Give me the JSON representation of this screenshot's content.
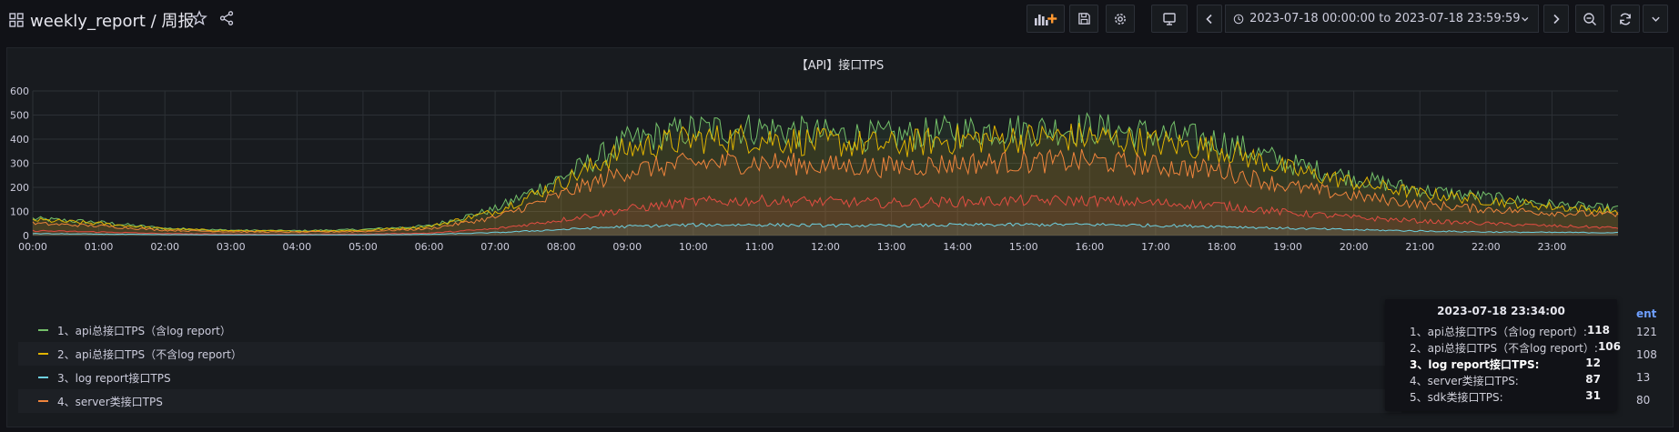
{
  "dashboard": {
    "title": "weekly_report / 周报"
  },
  "time_picker": {
    "range": "2023-07-18 00:00:00 to 2023-07-18 23:59:59"
  },
  "panel": {
    "title": "【API】接口TPS"
  },
  "chart_data": {
    "type": "area",
    "x_ticks": [
      "00:00",
      "01:00",
      "02:00",
      "03:00",
      "04:00",
      "05:00",
      "06:00",
      "07:00",
      "08:00",
      "09:00",
      "10:00",
      "11:00",
      "12:00",
      "13:00",
      "14:00",
      "15:00",
      "16:00",
      "17:00",
      "18:00",
      "19:00",
      "20:00",
      "21:00",
      "22:00",
      "23:00"
    ],
    "hours": [
      0,
      1,
      2,
      3,
      4,
      5,
      6,
      7,
      8,
      9,
      10,
      11,
      12,
      13,
      14,
      15,
      16,
      17,
      18,
      19,
      20,
      21,
      22,
      23,
      24
    ],
    "y_ticks": [
      0,
      100,
      200,
      300,
      400,
      500,
      600
    ],
    "ylim": [
      0,
      600
    ],
    "grid": true,
    "legend_placement": "bottom-left",
    "series": [
      {
        "name": "1、api总接口TPS（含log report）",
        "color": "#73bf69",
        "values": [
          70,
          55,
          30,
          22,
          20,
          25,
          40,
          110,
          240,
          390,
          440,
          445,
          420,
          410,
          435,
          440,
          445,
          420,
          390,
          300,
          240,
          190,
          160,
          130,
          110
        ]
      },
      {
        "name": "2、api总接口TPS（不含log report）",
        "color": "#e0b400",
        "values": [
          65,
          50,
          28,
          20,
          18,
          22,
          37,
          100,
          220,
          360,
          400,
          405,
          385,
          375,
          400,
          405,
          410,
          385,
          360,
          275,
          220,
          175,
          148,
          120,
          100
        ]
      },
      {
        "name": "3、log report接口TPS",
        "color": "#6ed0e0",
        "values": [
          8,
          6,
          4,
          3,
          3,
          3,
          5,
          12,
          25,
          38,
          44,
          45,
          42,
          41,
          44,
          45,
          46,
          42,
          38,
          30,
          24,
          19,
          15,
          13,
          12
        ]
      },
      {
        "name": "4、server类接口TPS",
        "color": "#ef843c",
        "values": [
          50,
          40,
          22,
          16,
          14,
          17,
          28,
          75,
          170,
          270,
          300,
          305,
          290,
          285,
          300,
          305,
          310,
          290,
          270,
          205,
          165,
          130,
          110,
          95,
          85
        ]
      },
      {
        "name": "5、sdk类接口TPS",
        "color": "#e24d42",
        "values": [
          20,
          15,
          8,
          6,
          5,
          6,
          10,
          28,
          65,
          110,
          140,
          145,
          140,
          135,
          140,
          145,
          145,
          135,
          125,
          95,
          75,
          60,
          50,
          40,
          32
        ]
      }
    ]
  },
  "legend": {
    "items": [
      {
        "label": "1、api总接口TPS（含log report）",
        "color": "#73bf69"
      },
      {
        "label": "2、api总接口TPS（不含log report）",
        "color": "#e0b400"
      },
      {
        "label": "3、log report接口TPS",
        "color": "#6ed0e0"
      },
      {
        "label": "4、server类接口TPS",
        "color": "#ef843c"
      }
    ],
    "right_header": "ent",
    "right_values": [
      "121",
      "108",
      "13",
      "80"
    ]
  },
  "tooltip": {
    "time": "2023-07-18 23:34:00",
    "rows": [
      {
        "label": "1、api总接口TPS（含log report）:",
        "value": "118"
      },
      {
        "label": "2、api总接口TPS（不含log report）:",
        "value": "106"
      },
      {
        "label": "3、log report接口TPS:",
        "value": "12"
      },
      {
        "label": "4、server类接口TPS:",
        "value": "87"
      },
      {
        "label": "5、sdk类接口TPS:",
        "value": "31"
      }
    ]
  }
}
